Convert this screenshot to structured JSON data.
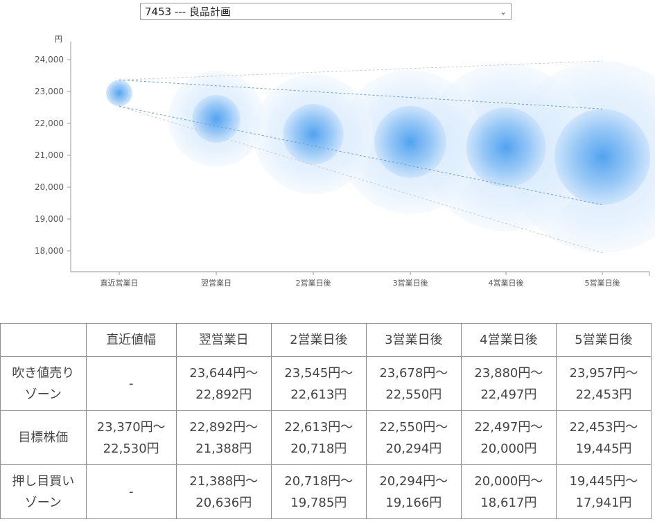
{
  "selector": {
    "value": "7453 --- 良品計画"
  },
  "chart_data": {
    "type": "scatter",
    "ylabel": "円",
    "ylim": [
      17300,
      24500
    ],
    "yticks": [
      18000,
      19000,
      20000,
      21000,
      22000,
      23000,
      24000
    ],
    "ytick_labels": [
      "18,000",
      "19,000",
      "20,000",
      "21,000",
      "22,000",
      "23,000",
      "24,000"
    ],
    "categories": [
      "直近営業日",
      "翌営業日",
      "2営業日後",
      "3営業日後",
      "4営業日後",
      "5営業日後"
    ],
    "center": [
      22950,
      22140,
      21660,
      21420,
      21250,
      20950
    ],
    "outer_upper": [
      23370,
      23644,
      23545,
      23678,
      23880,
      23957
    ],
    "inner_upper": [
      23370,
      22892,
      22613,
      22550,
      22497,
      22453
    ],
    "inner_lower": [
      22530,
      21388,
      20718,
      20294,
      20000,
      19445
    ],
    "outer_lower": [
      22530,
      20636,
      19785,
      19166,
      18617,
      17941
    ],
    "accent_color": "#4b9ff0"
  },
  "table": {
    "headers": [
      "",
      "直近値幅",
      "翌営業日",
      "2営業日後",
      "3営業日後",
      "4営業日後",
      "5営業日後"
    ],
    "rows": [
      {
        "label": [
          "吹き値売り",
          "ゾーン"
        ],
        "cells": [
          [
            "-",
            ""
          ],
          [
            "23,644円〜",
            "22,892円"
          ],
          [
            "23,545円〜",
            "22,613円"
          ],
          [
            "23,678円〜",
            "22,550円"
          ],
          [
            "23,880円〜",
            "22,497円"
          ],
          [
            "23,957円〜",
            "22,453円"
          ]
        ]
      },
      {
        "label": [
          "目標株価",
          ""
        ],
        "cells": [
          [
            "23,370円〜",
            "22,530円"
          ],
          [
            "22,892円〜",
            "21,388円"
          ],
          [
            "22,613円〜",
            "20,718円"
          ],
          [
            "22,550円〜",
            "20,294円"
          ],
          [
            "22,497円〜",
            "20,000円"
          ],
          [
            "22,453円〜",
            "19,445円"
          ]
        ]
      },
      {
        "label": [
          "押し目買い",
          "ゾーン"
        ],
        "cells": [
          [
            "-",
            ""
          ],
          [
            "21,388円〜",
            "20,636円"
          ],
          [
            "20,718円〜",
            "19,785円"
          ],
          [
            "20,294円〜",
            "19,166円"
          ],
          [
            "20,000円〜",
            "18,617円"
          ],
          [
            "19,445円〜",
            "17,941円"
          ]
        ]
      }
    ]
  }
}
